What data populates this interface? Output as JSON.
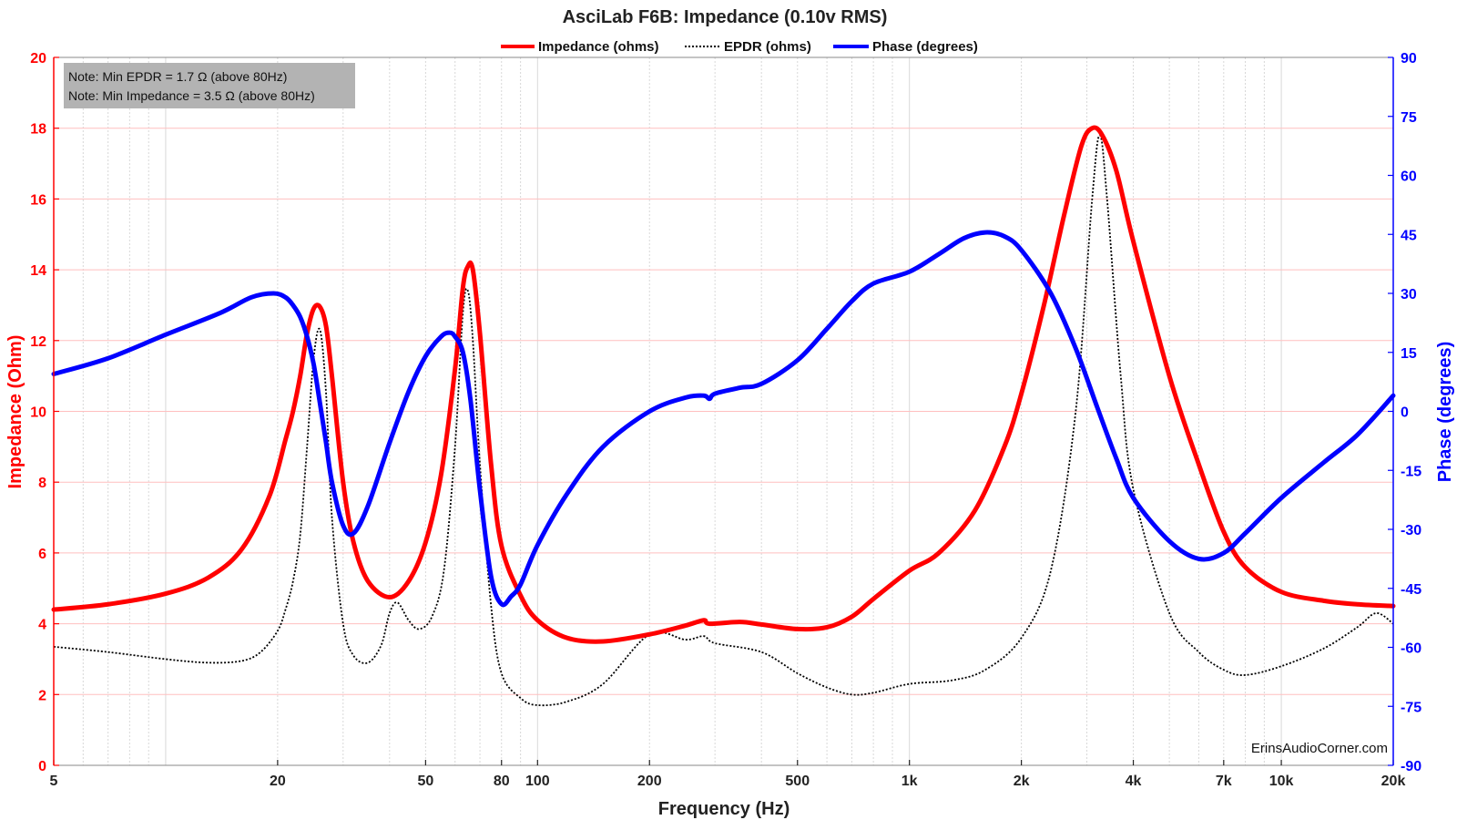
{
  "chart_data": {
    "type": "line",
    "title": "AsciLab F6B: Impedance (0.10v RMS)",
    "xlabel": "Frequency (Hz)",
    "ylabel": "Impedance (Ohm)",
    "y2label": "Phase (degrees)",
    "xscale": "log",
    "xlim": [
      5,
      20000
    ],
    "ylim": [
      0,
      20
    ],
    "y2lim": [
      -90,
      90
    ],
    "grid": true,
    "legend_position": "top-center",
    "x_ticks": [
      5,
      20,
      50,
      80,
      100,
      200,
      500,
      1000,
      2000,
      4000,
      7000,
      10000,
      20000
    ],
    "x_tick_labels": [
      "5",
      "20",
      "50",
      "80",
      "100",
      "200",
      "500",
      "1k",
      "2k",
      "4k",
      "7k",
      "10k",
      "20k"
    ],
    "y_ticks": [
      0,
      2,
      4,
      6,
      8,
      10,
      12,
      14,
      16,
      18,
      20
    ],
    "y2_ticks": [
      -90,
      -75,
      -60,
      -45,
      -30,
      -15,
      0,
      15,
      30,
      45,
      60,
      75,
      90
    ],
    "notes": [
      "Note: Min EPDR = 1.7 Ω (above 80Hz)",
      "Note: Min Impedance = 3.5 Ω (above 80Hz)"
    ],
    "watermark": "ErinsAudioCorner.com",
    "series": [
      {
        "name": "Impedance (ohms)",
        "axis": "left",
        "color": "#ff0000",
        "style": "solid",
        "points": [
          [
            5,
            4.4
          ],
          [
            7,
            4.55
          ],
          [
            10,
            4.85
          ],
          [
            13,
            5.3
          ],
          [
            16,
            6.1
          ],
          [
            19,
            7.6
          ],
          [
            21,
            9.2
          ],
          [
            22,
            10.0
          ],
          [
            23,
            11.0
          ],
          [
            24,
            12.2
          ],
          [
            25,
            12.9
          ],
          [
            26,
            12.95
          ],
          [
            27,
            12.4
          ],
          [
            28,
            11.0
          ],
          [
            30,
            8.0
          ],
          [
            32,
            6.3
          ],
          [
            35,
            5.2
          ],
          [
            40,
            4.75
          ],
          [
            45,
            5.2
          ],
          [
            50,
            6.3
          ],
          [
            55,
            8.2
          ],
          [
            60,
            11.2
          ],
          [
            63,
            13.5
          ],
          [
            65,
            14.1
          ],
          [
            67,
            14.0
          ],
          [
            70,
            12.2
          ],
          [
            75,
            8.5
          ],
          [
            80,
            6.2
          ],
          [
            90,
            4.8
          ],
          [
            100,
            4.1
          ],
          [
            120,
            3.6
          ],
          [
            150,
            3.5
          ],
          [
            200,
            3.7
          ],
          [
            250,
            3.95
          ],
          [
            280,
            4.1
          ],
          [
            290,
            4.0
          ],
          [
            350,
            4.05
          ],
          [
            400,
            3.98
          ],
          [
            500,
            3.85
          ],
          [
            600,
            3.9
          ],
          [
            700,
            4.2
          ],
          [
            800,
            4.7
          ],
          [
            1000,
            5.5
          ],
          [
            1200,
            6.0
          ],
          [
            1500,
            7.2
          ],
          [
            1800,
            9.0
          ],
          [
            2000,
            10.5
          ],
          [
            2300,
            13.0
          ],
          [
            2600,
            15.5
          ],
          [
            2900,
            17.5
          ],
          [
            3100,
            18.0
          ],
          [
            3300,
            17.8
          ],
          [
            3600,
            16.8
          ],
          [
            4000,
            14.8
          ],
          [
            5000,
            11.0
          ],
          [
            6000,
            8.5
          ],
          [
            7000,
            6.6
          ],
          [
            8000,
            5.6
          ],
          [
            10000,
            4.9
          ],
          [
            13000,
            4.65
          ],
          [
            16000,
            4.55
          ],
          [
            20000,
            4.5
          ]
        ]
      },
      {
        "name": "EPDR (ohms)",
        "axis": "left",
        "color": "#000000",
        "style": "dotted",
        "points": [
          [
            5,
            3.35
          ],
          [
            7,
            3.2
          ],
          [
            10,
            3.0
          ],
          [
            13,
            2.9
          ],
          [
            16,
            2.95
          ],
          [
            18,
            3.2
          ],
          [
            20,
            3.8
          ],
          [
            21,
            4.4
          ],
          [
            22,
            5.2
          ],
          [
            23,
            6.5
          ],
          [
            24,
            9.0
          ],
          [
            25,
            11.5
          ],
          [
            26,
            12.3
          ],
          [
            27,
            10.5
          ],
          [
            28,
            7.0
          ],
          [
            30,
            4.0
          ],
          [
            32,
            3.1
          ],
          [
            35,
            2.9
          ],
          [
            38,
            3.4
          ],
          [
            40,
            4.3
          ],
          [
            42,
            4.6
          ],
          [
            45,
            4.1
          ],
          [
            48,
            3.85
          ],
          [
            52,
            4.2
          ],
          [
            56,
            5.5
          ],
          [
            60,
            9.0
          ],
          [
            63,
            12.8
          ],
          [
            65,
            13.4
          ],
          [
            67,
            12.0
          ],
          [
            70,
            8.5
          ],
          [
            75,
            4.5
          ],
          [
            80,
            2.6
          ],
          [
            90,
            1.9
          ],
          [
            100,
            1.7
          ],
          [
            120,
            1.8
          ],
          [
            150,
            2.3
          ],
          [
            200,
            3.7
          ],
          [
            250,
            3.55
          ],
          [
            280,
            3.65
          ],
          [
            300,
            3.45
          ],
          [
            400,
            3.2
          ],
          [
            500,
            2.6
          ],
          [
            600,
            2.2
          ],
          [
            700,
            2.0
          ],
          [
            800,
            2.05
          ],
          [
            1000,
            2.3
          ],
          [
            1300,
            2.4
          ],
          [
            1600,
            2.7
          ],
          [
            2000,
            3.6
          ],
          [
            2400,
            5.5
          ],
          [
            2800,
            10.0
          ],
          [
            3100,
            16.0
          ],
          [
            3250,
            17.8
          ],
          [
            3400,
            16.0
          ],
          [
            3700,
            11.0
          ],
          [
            4000,
            7.8
          ],
          [
            5000,
            4.3
          ],
          [
            6000,
            3.2
          ],
          [
            7000,
            2.7
          ],
          [
            8000,
            2.55
          ],
          [
            10000,
            2.8
          ],
          [
            13000,
            3.3
          ],
          [
            16000,
            3.9
          ],
          [
            18000,
            4.3
          ],
          [
            20000,
            4.0
          ]
        ]
      },
      {
        "name": "Phase (degrees)",
        "axis": "right",
        "color": "#0000ff",
        "style": "solid",
        "points": [
          [
            5,
            9.5
          ],
          [
            7,
            13.5
          ],
          [
            10,
            19.5
          ],
          [
            14,
            25
          ],
          [
            17,
            29
          ],
          [
            19.5,
            30
          ],
          [
            21,
            29
          ],
          [
            22,
            27
          ],
          [
            23,
            24
          ],
          [
            24,
            19
          ],
          [
            25,
            12
          ],
          [
            26,
            2
          ],
          [
            27,
            -8
          ],
          [
            28,
            -18
          ],
          [
            30,
            -29
          ],
          [
            32,
            -31
          ],
          [
            35,
            -24
          ],
          [
            40,
            -8
          ],
          [
            45,
            5
          ],
          [
            50,
            14
          ],
          [
            55,
            19
          ],
          [
            58,
            20
          ],
          [
            60,
            19
          ],
          [
            63,
            15
          ],
          [
            66,
            3
          ],
          [
            70,
            -20
          ],
          [
            75,
            -42
          ],
          [
            80,
            -49
          ],
          [
            85,
            -47
          ],
          [
            90,
            -44
          ],
          [
            100,
            -34
          ],
          [
            120,
            -21
          ],
          [
            150,
            -9
          ],
          [
            200,
            0
          ],
          [
            250,
            3.5
          ],
          [
            280,
            4
          ],
          [
            290,
            3.2
          ],
          [
            300,
            4.5
          ],
          [
            350,
            6
          ],
          [
            400,
            7
          ],
          [
            500,
            13
          ],
          [
            600,
            21
          ],
          [
            700,
            28
          ],
          [
            800,
            32.5
          ],
          [
            1000,
            35.5
          ],
          [
            1200,
            40
          ],
          [
            1400,
            44
          ],
          [
            1600,
            45.5
          ],
          [
            1800,
            44.5
          ],
          [
            2000,
            41
          ],
          [
            2400,
            30
          ],
          [
            2800,
            16
          ],
          [
            3200,
            1
          ],
          [
            3600,
            -12
          ],
          [
            4000,
            -22
          ],
          [
            5000,
            -33
          ],
          [
            6000,
            -37.5
          ],
          [
            7000,
            -36
          ],
          [
            8000,
            -31
          ],
          [
            10000,
            -22
          ],
          [
            13000,
            -13
          ],
          [
            16000,
            -6
          ],
          [
            20000,
            4
          ]
        ]
      }
    ]
  }
}
